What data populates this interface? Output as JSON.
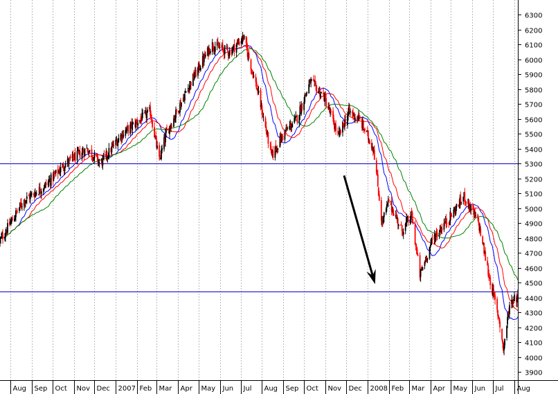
{
  "chart_data": {
    "type": "candlestick",
    "title": "",
    "xlabel": "",
    "ylabel": "",
    "ylim": [
      3845,
      6400
    ],
    "y_ticks": [
      3900,
      4000,
      4100,
      4200,
      4300,
      4400,
      4500,
      4600,
      4700,
      4800,
      4900,
      5000,
      5100,
      5200,
      5300,
      5400,
      5500,
      5600,
      5700,
      5800,
      5900,
      6000,
      6100,
      6200,
      6300
    ],
    "y_axis_position": "right",
    "grid": "vertical dotted",
    "legend": "none",
    "x_tick_labels": [
      "Aug",
      "Sep",
      "Oct",
      "Nov",
      "Dec",
      "2007",
      "Feb",
      "Mar",
      "Apr",
      "May",
      "Jun",
      "Jul",
      "Aug",
      "Sep",
      "Oct",
      "Nov",
      "Dec",
      "2008",
      "Feb",
      "Mar",
      "Apr",
      "May",
      "Jun",
      "Jul",
      "Aug"
    ],
    "x_tick_dates": [
      "2006-08",
      "2006-09",
      "2006-10",
      "2006-11",
      "2006-12",
      "2007-01",
      "2007-02",
      "2007-03",
      "2007-04",
      "2007-05",
      "2007-06",
      "2007-07",
      "2007-08",
      "2007-09",
      "2007-10",
      "2007-11",
      "2007-12",
      "2008-01",
      "2008-02",
      "2008-03",
      "2008-04",
      "2008-05",
      "2008-06",
      "2008-07",
      "2008-08"
    ],
    "horizontal_lines": [
      {
        "value": 5300,
        "color": "#0000cc"
      },
      {
        "value": 4440,
        "color": "#0000cc"
      }
    ],
    "price_waypoints": [
      {
        "date": "2006-07-17",
        "value": 4780
      },
      {
        "date": "2006-08-01",
        "value": 4900
      },
      {
        "date": "2006-08-20",
        "value": 5050
      },
      {
        "date": "2006-09-20",
        "value": 5150
      },
      {
        "date": "2006-10-20",
        "value": 5300
      },
      {
        "date": "2006-11-20",
        "value": 5400
      },
      {
        "date": "2006-12-10",
        "value": 5300
      },
      {
        "date": "2007-01-10",
        "value": 5500
      },
      {
        "date": "2007-02-20",
        "value": 5650
      },
      {
        "date": "2007-03-05",
        "value": 5320
      },
      {
        "date": "2007-03-15",
        "value": 5500
      },
      {
        "date": "2007-04-20",
        "value": 5850
      },
      {
        "date": "2007-05-20",
        "value": 6100
      },
      {
        "date": "2007-06-15",
        "value": 6050
      },
      {
        "date": "2007-07-05",
        "value": 6150
      },
      {
        "date": "2007-07-25",
        "value": 5800
      },
      {
        "date": "2007-08-15",
        "value": 5350
      },
      {
        "date": "2007-09-01",
        "value": 5500
      },
      {
        "date": "2007-09-20",
        "value": 5600
      },
      {
        "date": "2007-10-10",
        "value": 5850
      },
      {
        "date": "2007-10-30",
        "value": 5750
      },
      {
        "date": "2007-11-20",
        "value": 5480
      },
      {
        "date": "2007-12-05",
        "value": 5650
      },
      {
        "date": "2007-12-20",
        "value": 5600
      },
      {
        "date": "2008-01-10",
        "value": 5400
      },
      {
        "date": "2008-01-22",
        "value": 4900
      },
      {
        "date": "2008-02-01",
        "value": 5050
      },
      {
        "date": "2008-02-20",
        "value": 4850
      },
      {
        "date": "2008-03-05",
        "value": 4950
      },
      {
        "date": "2008-03-17",
        "value": 4550
      },
      {
        "date": "2008-04-05",
        "value": 4800
      },
      {
        "date": "2008-05-01",
        "value": 4950
      },
      {
        "date": "2008-05-20",
        "value": 5080
      },
      {
        "date": "2008-06-10",
        "value": 4900
      },
      {
        "date": "2008-06-25",
        "value": 4550
      },
      {
        "date": "2008-07-10",
        "value": 4250
      },
      {
        "date": "2008-07-16",
        "value": 4050
      },
      {
        "date": "2008-07-25",
        "value": 4350
      },
      {
        "date": "2008-08-01",
        "value": 4400
      }
    ],
    "moving_averages": [
      {
        "color": "#0000ff",
        "period_days": 20
      },
      {
        "color": "#ff0000",
        "period_days": 30
      },
      {
        "color": "#008000",
        "period_days": 50
      }
    ],
    "candle_colors": {
      "up": "#000000",
      "down": "#ff0000"
    },
    "annotations": [
      {
        "type": "arrow",
        "color": "#000000",
        "from": {
          "date": "2007-11-28",
          "value": 5220
        },
        "to": {
          "date": "2008-01-12",
          "value": 4490
        }
      }
    ]
  }
}
